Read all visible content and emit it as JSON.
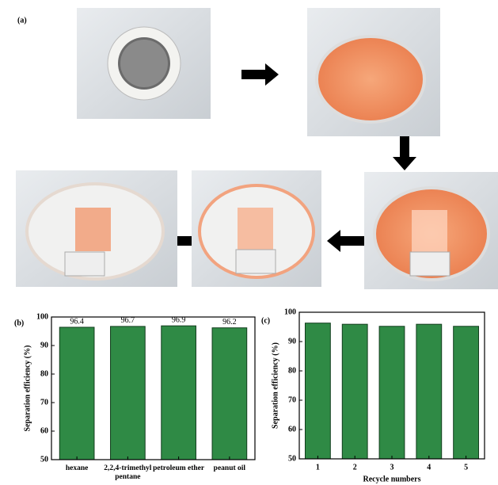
{
  "photo_panel": {
    "label": "(a)"
  },
  "chart_data": [
    {
      "type": "bar",
      "panel_label": "(b)",
      "ylabel": "Separation efficiency (%)",
      "categories": [
        "hexane",
        "2,2,4-trimethyl pentane",
        "petroleum ether",
        "peanut oil"
      ],
      "values": [
        96.4,
        96.7,
        96.9,
        96.2
      ],
      "show_value_labels": true,
      "color": "#2f8a45",
      "ylim": [
        50,
        100
      ],
      "yticks": [
        50,
        60,
        70,
        80,
        90,
        100
      ]
    },
    {
      "type": "bar",
      "panel_label": "(c)",
      "ylabel": "Separation efficiency (%)",
      "xlabel": "Recycle numbers",
      "categories": [
        "1",
        "2",
        "3",
        "4",
        "5"
      ],
      "values": [
        96.3,
        95.9,
        95.2,
        95.9,
        95.2
      ],
      "show_value_labels": false,
      "color": "#2f8a45",
      "ylim": [
        50,
        100
      ],
      "yticks": [
        50,
        60,
        70,
        80,
        90,
        100
      ]
    }
  ]
}
